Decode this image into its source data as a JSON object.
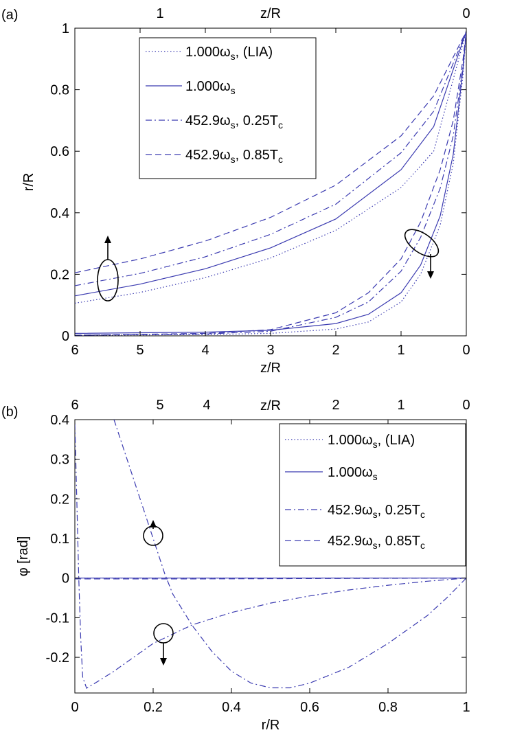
{
  "chart_data": [
    {
      "type": "line",
      "panel_label": "(a)",
      "xlabel": "z/R",
      "top_xlabel": "z/R",
      "ylabel": "r/R",
      "xlim": [
        6,
        0
      ],
      "ylim": [
        0,
        1
      ],
      "xticks": [
        "6",
        "5",
        "4",
        "3",
        "2",
        "1",
        "0"
      ],
      "yticks": [
        "0",
        "0.2",
        "0.4",
        "0.6",
        "0.8",
        "1"
      ],
      "top_xticks": [
        "1",
        "0"
      ],
      "legend": [
        {
          "main": "1.000ω",
          "sub": "s",
          "tail": ", (LIA)",
          "style": "dotted"
        },
        {
          "main": "1.000ω",
          "sub": "s",
          "tail": "",
          "style": "solid"
        },
        {
          "main": "452.9ω",
          "sub": "s",
          "tail": ", 0.25T",
          "sub2": "c",
          "style": "dashdot"
        },
        {
          "main": "452.9ω",
          "sub": "s",
          "tail": ", 0.85T",
          "sub2": "c",
          "style": "dashed"
        }
      ],
      "legend_position": "top-center",
      "grid": false,
      "series": [
        {
          "style": "dotted",
          "group": "upper",
          "points": [
            [
              6,
              0.106
            ],
            [
              5,
              0.141
            ],
            [
              4,
              0.189
            ],
            [
              3,
              0.253
            ],
            [
              2,
              0.343
            ],
            [
              1,
              0.482
            ],
            [
              0.5,
              0.6
            ],
            [
              0,
              0.99
            ]
          ]
        },
        {
          "style": "solid",
          "group": "upper",
          "points": [
            [
              6,
              0.13
            ],
            [
              5,
              0.168
            ],
            [
              4,
              0.218
            ],
            [
              3,
              0.286
            ],
            [
              2,
              0.38
            ],
            [
              1,
              0.54
            ],
            [
              0.5,
              0.68
            ],
            [
              0,
              0.99
            ]
          ]
        },
        {
          "style": "dashdot",
          "group": "upper",
          "points": [
            [
              6,
              0.163
            ],
            [
              5,
              0.203
            ],
            [
              4,
              0.257
            ],
            [
              3,
              0.33
            ],
            [
              2,
              0.428
            ],
            [
              1,
              0.595
            ],
            [
              0.5,
              0.73
            ],
            [
              0,
              0.99
            ]
          ]
        },
        {
          "style": "dashed",
          "group": "upper",
          "points": [
            [
              6,
              0.205
            ],
            [
              5,
              0.25
            ],
            [
              4,
              0.308
            ],
            [
              3,
              0.385
            ],
            [
              2,
              0.49
            ],
            [
              1,
              0.65
            ],
            [
              0.5,
              0.78
            ],
            [
              0,
              0.99
            ]
          ]
        },
        {
          "style": "dotted",
          "group": "lower",
          "points": [
            [
              6,
              0.002
            ],
            [
              4,
              0.004
            ],
            [
              3,
              0.008
            ],
            [
              2,
              0.022
            ],
            [
              1.5,
              0.045
            ],
            [
              1,
              0.11
            ],
            [
              0.7,
              0.2
            ],
            [
              0.4,
              0.36
            ],
            [
              0.2,
              0.56
            ],
            [
              0.05,
              0.85
            ],
            [
              0,
              0.99
            ]
          ]
        },
        {
          "style": "solid",
          "group": "lower",
          "points": [
            [
              6,
              0.008
            ],
            [
              4,
              0.012
            ],
            [
              3,
              0.018
            ],
            [
              2,
              0.04
            ],
            [
              1.5,
              0.07
            ],
            [
              1,
              0.14
            ],
            [
              0.7,
              0.23
            ],
            [
              0.4,
              0.39
            ],
            [
              0.2,
              0.59
            ],
            [
              0.05,
              0.87
            ],
            [
              0,
              0.99
            ]
          ]
        },
        {
          "style": "dashdot",
          "group": "lower",
          "points": [
            [
              6,
              0.002
            ],
            [
              4,
              0.006
            ],
            [
              3,
              0.015
            ],
            [
              2,
              0.06
            ],
            [
              1.5,
              0.11
            ],
            [
              1,
              0.21
            ],
            [
              0.7,
              0.32
            ],
            [
              0.4,
              0.48
            ],
            [
              0.2,
              0.65
            ],
            [
              0.05,
              0.88
            ],
            [
              0,
              0.99
            ]
          ]
        },
        {
          "style": "dashed",
          "group": "lower",
          "points": [
            [
              6,
              0.002
            ],
            [
              4,
              0.008
            ],
            [
              3,
              0.02
            ],
            [
              2,
              0.075
            ],
            [
              1.5,
              0.14
            ],
            [
              1,
              0.25
            ],
            [
              0.7,
              0.37
            ],
            [
              0.4,
              0.54
            ],
            [
              0.2,
              0.7
            ],
            [
              0.05,
              0.9
            ],
            [
              0,
              0.99
            ]
          ]
        }
      ]
    },
    {
      "type": "line",
      "panel_label": "(b)",
      "xlabel": "r/R",
      "top_xlabel": "z/R",
      "ylabel": "φ [rad]",
      "xlim": [
        0,
        1
      ],
      "ylim": [
        -0.29,
        0.4
      ],
      "xticks": [
        "0",
        "0.2",
        "0.4",
        "0.6",
        "0.8",
        "1"
      ],
      "yticks": [
        "-0.2",
        "-0.1",
        "0",
        "0.1",
        "0.2",
        "0.3",
        "0.4"
      ],
      "top_xticks": [
        "6",
        "5",
        "4",
        "2",
        "1",
        "0"
      ],
      "legend": [
        {
          "main": "1.000ω",
          "sub": "s",
          "tail": ", (LIA)",
          "style": "dotted"
        },
        {
          "main": "1.000ω",
          "sub": "s",
          "tail": "",
          "style": "solid"
        },
        {
          "main": "452.9ω",
          "sub": "s",
          "tail": ", 0.25T",
          "sub2": "c",
          "style": "dashdot"
        },
        {
          "main": "452.9ω",
          "sub": "s",
          "tail": ", 0.85T",
          "sub2": "c",
          "style": "dashed"
        }
      ],
      "legend_position": "top-right",
      "grid": false,
      "series": [
        {
          "style": "dotted",
          "points": [
            [
              0,
              0
            ],
            [
              1,
              0
            ]
          ]
        },
        {
          "style": "solid",
          "points": [
            [
              0,
              0
            ],
            [
              1,
              0
            ]
          ]
        },
        {
          "style": "dashdot",
          "points": [
            [
              0,
              0.39
            ],
            [
              0.005,
              0.2
            ],
            [
              0.01,
              0
            ],
            [
              0.015,
              -0.15
            ],
            [
              0.02,
              -0.25
            ],
            [
              0.03,
              -0.278
            ],
            [
              0.06,
              -0.26
            ],
            [
              0.1,
              -0.235
            ],
            [
              0.2,
              -0.165
            ],
            [
              0.3,
              -0.118
            ],
            [
              0.4,
              -0.087
            ],
            [
              0.5,
              -0.063
            ],
            [
              0.6,
              -0.045
            ],
            [
              0.7,
              -0.03
            ],
            [
              0.8,
              -0.018
            ],
            [
              0.9,
              -0.008
            ],
            [
              1,
              0
            ]
          ]
        },
        {
          "style": "dashdot",
          "points": [
            [
              0.1,
              0.4
            ],
            [
              0.15,
              0.25
            ],
            [
              0.2,
              0.1
            ],
            [
              0.23,
              0.01
            ],
            [
              0.25,
              -0.04
            ],
            [
              0.3,
              -0.12
            ],
            [
              0.35,
              -0.185
            ],
            [
              0.4,
              -0.235
            ],
            [
              0.45,
              -0.265
            ],
            [
              0.5,
              -0.277
            ],
            [
              0.55,
              -0.277
            ],
            [
              0.6,
              -0.265
            ],
            [
              0.7,
              -0.225
            ],
            [
              0.8,
              -0.165
            ],
            [
              0.9,
              -0.095
            ],
            [
              0.95,
              -0.05
            ],
            [
              1,
              0
            ]
          ]
        },
        {
          "style": "dashed",
          "points": [
            [
              0,
              -0.002
            ],
            [
              0.3,
              -0.002
            ],
            [
              1,
              0
            ]
          ]
        }
      ]
    }
  ]
}
